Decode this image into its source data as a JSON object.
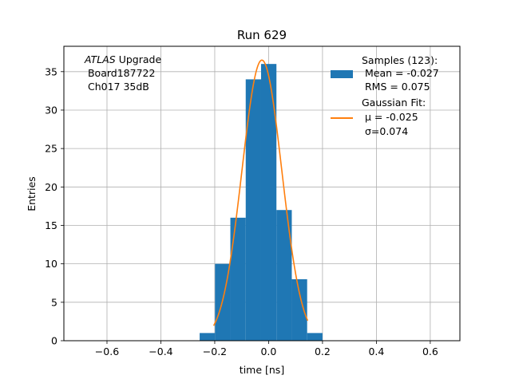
{
  "chart_data": {
    "type": "bar",
    "title": "Run 629",
    "xlabel": "time [ns]",
    "ylabel": "Entries",
    "xlim": [
      -0.76,
      0.71
    ],
    "ylim": [
      0,
      38.3
    ],
    "xticks": [
      -0.6,
      -0.4,
      -0.2,
      0.0,
      0.2,
      0.4,
      0.6
    ],
    "xtick_labels": [
      "−0.6",
      "−0.4",
      "−0.2",
      "0.0",
      "0.2",
      "0.4",
      "0.6"
    ],
    "yticks": [
      0,
      5,
      10,
      15,
      20,
      25,
      30,
      35
    ],
    "ytick_labels": [
      "0",
      "5",
      "10",
      "15",
      "20",
      "25",
      "30",
      "35"
    ],
    "grid": true,
    "histogram": {
      "bin_edges": [
        -0.256,
        -0.199,
        -0.142,
        -0.085,
        -0.028,
        0.029,
        0.086,
        0.143,
        0.2
      ],
      "counts": [
        1,
        10,
        16,
        34,
        36,
        17,
        8,
        1
      ],
      "color": "#1f77b4"
    },
    "fit": {
      "mu": -0.025,
      "sigma": 0.074,
      "amplitude": 36.5,
      "x_range": [
        -0.204,
        0.145
      ],
      "color": "#ff7f0e"
    },
    "annotation": {
      "italic": "ATLAS",
      "line1_rest": " Upgrade",
      "line2": " Board187722",
      "line3": " Ch017 35dB"
    },
    "legend": {
      "position": "upper right",
      "samples_lines": [
        "Samples (123):",
        " Mean = -0.027",
        " RMS = 0.075"
      ],
      "fit_lines": [
        "Gaussian Fit:",
        " μ = -0.025",
        " σ=0.074"
      ]
    }
  }
}
